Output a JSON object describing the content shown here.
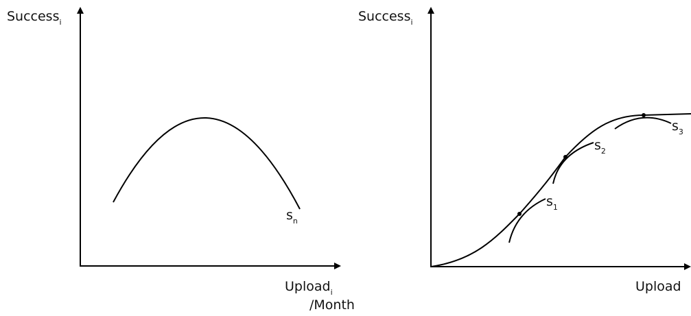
{
  "left_panel": {
    "y_label": {
      "text": "Success",
      "sub": "i"
    },
    "x_label": {
      "text": "Upload",
      "sub": "i",
      "line2": "/Month"
    },
    "curve_label": {
      "text": "s",
      "sub": "n"
    }
  },
  "right_panel": {
    "y_label": {
      "text": "Success",
      "sub": "i"
    },
    "x_label": {
      "text": "Upload"
    },
    "curve_labels": [
      {
        "text": "s",
        "sub": "1"
      },
      {
        "text": "s",
        "sub": "2"
      },
      {
        "text": "s",
        "sub": "3"
      }
    ]
  }
}
